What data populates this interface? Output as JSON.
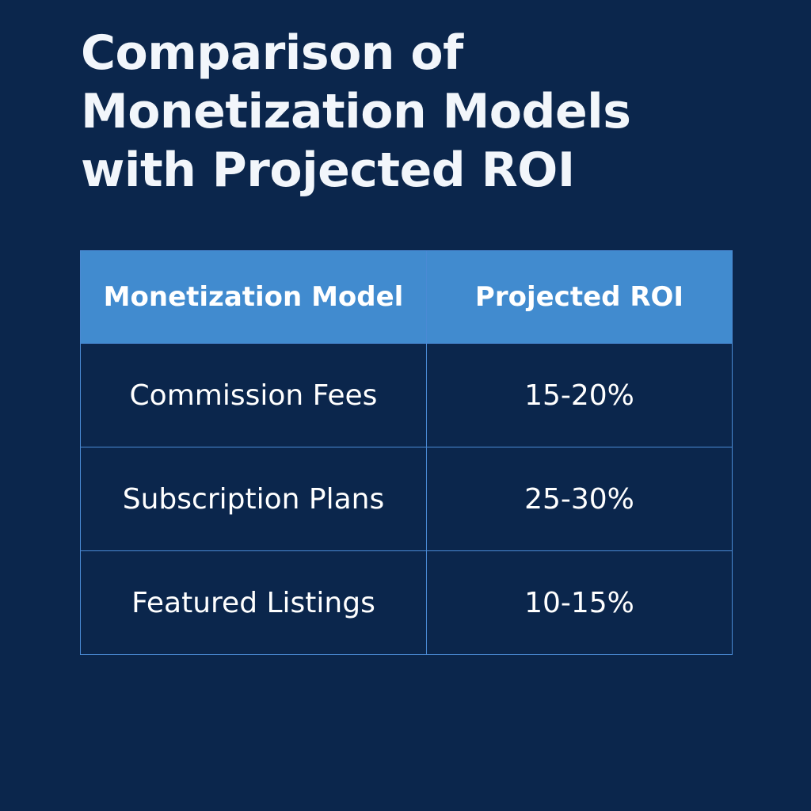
{
  "title_lines": [
    "Comparison of",
    "Monetization Models",
    "with Projected ROI"
  ],
  "table": {
    "headers": {
      "model": "Monetization Model",
      "roi": "Projected ROI"
    },
    "rows": [
      {
        "model": "Commission Fees",
        "roi": "15-20%"
      },
      {
        "model": "Subscription Plans",
        "roi": "25-30%"
      },
      {
        "model": "Featured Listings",
        "roi": "10-15%"
      }
    ]
  },
  "colors": {
    "background": "#0b264c",
    "header_fill": "#418bcf",
    "border": "#4a8ad4",
    "text": "#ffffff"
  }
}
